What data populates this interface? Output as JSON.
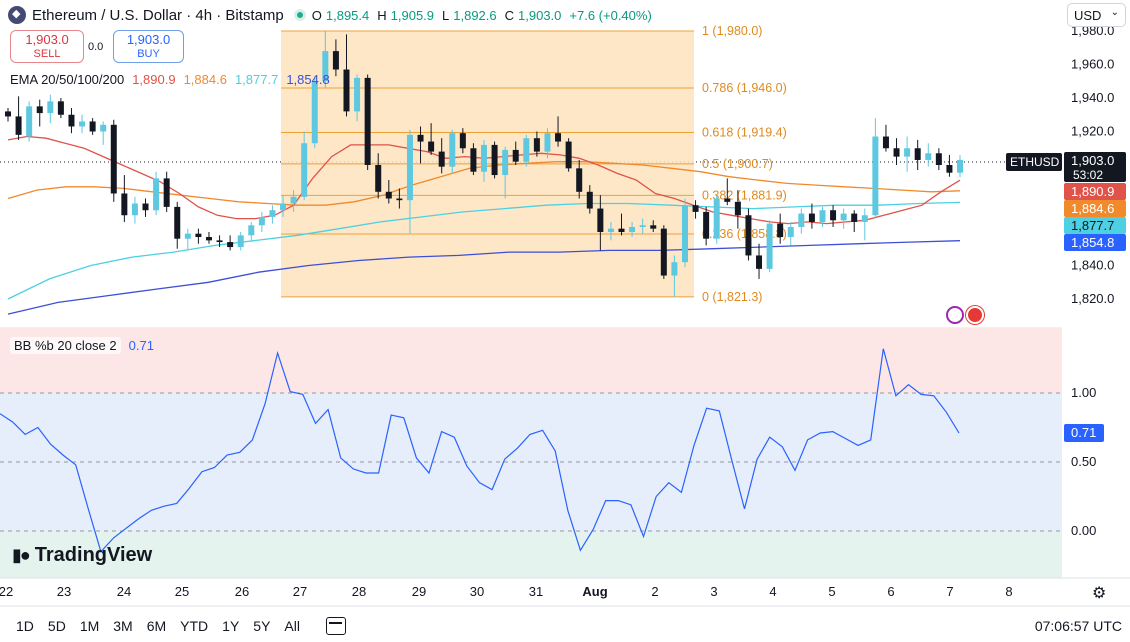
{
  "header": {
    "title": "Ethereum / U.S. Dollar · 4h · Bitstamp",
    "ohlc": [
      {
        "k": "O",
        "v": "1,895.4"
      },
      {
        "k": "H",
        "v": "1,905.9"
      },
      {
        "k": "L",
        "v": "1,892.6"
      },
      {
        "k": "C",
        "v": "1,903.0"
      },
      {
        "k": "",
        "v": "+7.6 (+0.40%)"
      }
    ]
  },
  "trade": {
    "sell_price": "1,903.0",
    "sell_label": "SELL",
    "spread": "0.0",
    "buy_price": "1,903.0",
    "buy_label": "BUY"
  },
  "currency_select": "USD",
  "ema_legend": {
    "label": "EMA 20/50/100/200",
    "values": [
      "1,890.9",
      "1,884.6",
      "1,877.7",
      "1,854.8"
    ],
    "colors": [
      "#e0534a",
      "#f08a2c",
      "#4dd0e1",
      "#3d4fd6"
    ]
  },
  "bb_legend": {
    "label": "BB %b 20 close 2",
    "value": "0.71"
  },
  "price_scale": {
    "ticks": [
      "1,980.0",
      "1,960.0",
      "1,940.0",
      "1,920.0",
      "1,900.0",
      "1,880.0",
      "1,860.0",
      "1,840.0",
      "1,820.0"
    ],
    "symbol_tag": "ETHUSD",
    "current_price": "1,903.0",
    "countdown": "53:02",
    "ema_tags": [
      "1,890.9",
      "1,884.6",
      "1,877.7",
      "1,854.8"
    ]
  },
  "bb_scale": {
    "ticks": [
      "1.00",
      "0.50",
      "0.00"
    ],
    "current": "0.71"
  },
  "time_axis": [
    "22",
    "23",
    "24",
    "25",
    "26",
    "27",
    "28",
    "29",
    "30",
    "31",
    "Aug",
    "2",
    "3",
    "4",
    "5",
    "6",
    "7",
    "8"
  ],
  "fib_levels": [
    {
      "label": "1 (1,980.0)",
      "price": 1980.0
    },
    {
      "label": "0.786 (1,946.0)",
      "price": 1946.0
    },
    {
      "label": "0.618 (1,919.4)",
      "price": 1919.4
    },
    {
      "label": "0.5 (1,900.7)",
      "price": 1900.7
    },
    {
      "label": "0.382 (1,881.9)",
      "price": 1881.9
    },
    {
      "label": "0.236 (1,858.8)",
      "price": 1858.8
    },
    {
      "label": "0 (1,821.3)",
      "price": 1821.3
    }
  ],
  "brand": "TradingView",
  "bottom_bar": {
    "ranges": [
      "1D",
      "5D",
      "1M",
      "3M",
      "6M",
      "YTD",
      "1Y",
      "5Y",
      "All"
    ],
    "clock": "07:06:57 UTC"
  },
  "colors": {
    "up": "#5ec8e0",
    "down": "#131722",
    "fib_fill": "#fde3bd",
    "fib_line": "#f0a035",
    "bb_line": "#2962ff",
    "bb_upper_fill": "#fde6e6",
    "bb_mid_fill": "#e6edfb",
    "bb_lower_fill": "#e4f3ee"
  },
  "chart_data": {
    "type": "candlestick",
    "symbol": "ETHUSD",
    "timeframe": "4h",
    "candles": [
      [
        1932.0,
        1934.0,
        1926.0,
        1929.0
      ],
      [
        1929.0,
        1941.0,
        1915.0,
        1918.0
      ],
      [
        1917.0,
        1938.0,
        1914.0,
        1935.0
      ],
      [
        1935.0,
        1939.0,
        1923.0,
        1931.0
      ],
      [
        1931.0,
        1942.0,
        1925.0,
        1938.0
      ],
      [
        1938.0,
        1940.0,
        1928.0,
        1930.0
      ],
      [
        1930.0,
        1934.0,
        1919.0,
        1923.0
      ],
      [
        1923.0,
        1930.0,
        1919.0,
        1926.0
      ],
      [
        1926.0,
        1928.0,
        1918.0,
        1920.0
      ],
      [
        1920.0,
        1926.0,
        1912.0,
        1924.0
      ],
      [
        1924.0,
        1927.0,
        1878.0,
        1883.0
      ],
      [
        1883.0,
        1894.0,
        1866.0,
        1870.0
      ],
      [
        1870.0,
        1881.0,
        1865.0,
        1877.0
      ],
      [
        1877.0,
        1880.0,
        1869.0,
        1873.0
      ],
      [
        1873.0,
        1896.0,
        1870.0,
        1892.0
      ],
      [
        1892.0,
        1896.0,
        1872.0,
        1875.0
      ],
      [
        1875.0,
        1878.0,
        1850.0,
        1856.0
      ],
      [
        1856.0,
        1862.0,
        1849.0,
        1859.0
      ],
      [
        1859.0,
        1862.0,
        1853.0,
        1857.0
      ],
      [
        1857.0,
        1860.0,
        1853.0,
        1855.0
      ],
      [
        1855.0,
        1858.0,
        1851.0,
        1854.0
      ],
      [
        1854.0,
        1858.0,
        1849.0,
        1851.0
      ],
      [
        1851.0,
        1860.0,
        1849.0,
        1858.0
      ],
      [
        1858.0,
        1866.0,
        1855.0,
        1864.0
      ],
      [
        1864.0,
        1872.0,
        1860.0,
        1869.0
      ],
      [
        1869.0,
        1876.0,
        1865.0,
        1873.0
      ],
      [
        1873.0,
        1882.0,
        1869.0,
        1877.0
      ],
      [
        1877.0,
        1885.0,
        1872.0,
        1881.0
      ],
      [
        1881.0,
        1920.0,
        1879.0,
        1913.0
      ],
      [
        1913.0,
        1953.0,
        1910.0,
        1950.0
      ],
      [
        1950.0,
        1980.0,
        1946.0,
        1968.0
      ],
      [
        1968.0,
        1975.0,
        1953.0,
        1957.0
      ],
      [
        1957.0,
        1978.0,
        1929.0,
        1932.0
      ],
      [
        1932.0,
        1954.0,
        1926.0,
        1952.0
      ],
      [
        1952.0,
        1954.0,
        1897.0,
        1900.0
      ],
      [
        1900.0,
        1907.0,
        1880.0,
        1884.0
      ],
      [
        1884.0,
        1891.0,
        1877.0,
        1880.0
      ],
      [
        1880.0,
        1886.0,
        1874.0,
        1879.0
      ],
      [
        1879.0,
        1921.0,
        1859.0,
        1918.0
      ],
      [
        1918.0,
        1923.0,
        1901.0,
        1914.0
      ],
      [
        1914.0,
        1925.0,
        1906.0,
        1908.0
      ],
      [
        1908.0,
        1916.0,
        1895.0,
        1899.0
      ],
      [
        1899.0,
        1921.0,
        1895.0,
        1919.0
      ],
      [
        1919.0,
        1922.0,
        1907.0,
        1910.0
      ],
      [
        1910.0,
        1913.0,
        1894.0,
        1896.0
      ],
      [
        1896.0,
        1915.0,
        1890.0,
        1912.0
      ],
      [
        1912.0,
        1914.0,
        1892.0,
        1894.0
      ],
      [
        1894.0,
        1911.0,
        1880.0,
        1909.0
      ],
      [
        1909.0,
        1914.0,
        1900.0,
        1902.0
      ],
      [
        1902.0,
        1918.0,
        1899.0,
        1916.0
      ],
      [
        1916.0,
        1920.0,
        1905.0,
        1908.0
      ],
      [
        1908.0,
        1922.0,
        1904.0,
        1919.0
      ],
      [
        1919.0,
        1929.0,
        1911.0,
        1914.0
      ],
      [
        1914.0,
        1916.0,
        1896.0,
        1898.0
      ],
      [
        1898.0,
        1903.0,
        1880.0,
        1884.0
      ],
      [
        1884.0,
        1888.0,
        1871.0,
        1874.0
      ],
      [
        1874.0,
        1882.0,
        1849.0,
        1860.0
      ],
      [
        1860.0,
        1866.0,
        1855.0,
        1862.0
      ],
      [
        1862.0,
        1871.0,
        1858.0,
        1860.0
      ],
      [
        1860.0,
        1866.0,
        1857.0,
        1863.0
      ],
      [
        1863.0,
        1868.0,
        1859.0,
        1864.0
      ],
      [
        1864.0,
        1867.0,
        1860.0,
        1862.0
      ],
      [
        1862.0,
        1864.0,
        1832.0,
        1834.0
      ],
      [
        1834.0,
        1846.0,
        1821.3,
        1842.0
      ],
      [
        1842.0,
        1880.0,
        1839.0,
        1876.0
      ],
      [
        1876.0,
        1879.0,
        1868.0,
        1872.0
      ],
      [
        1872.0,
        1875.0,
        1852.0,
        1856.0
      ],
      [
        1856.0,
        1882.0,
        1853.0,
        1880.0
      ],
      [
        1880.0,
        1892.0,
        1876.0,
        1878.0
      ],
      [
        1878.0,
        1885.0,
        1862.0,
        1870.0
      ],
      [
        1870.0,
        1874.0,
        1843.0,
        1846.0
      ],
      [
        1846.0,
        1853.0,
        1832.0,
        1838.0
      ],
      [
        1838.0,
        1867.0,
        1836.0,
        1865.0
      ],
      [
        1865.0,
        1871.0,
        1853.0,
        1857.0
      ],
      [
        1857.0,
        1866.0,
        1852.0,
        1863.0
      ],
      [
        1863.0,
        1874.0,
        1859.0,
        1871.0
      ],
      [
        1871.0,
        1877.0,
        1862.0,
        1866.0
      ],
      [
        1866.0,
        1875.0,
        1863.0,
        1873.0
      ],
      [
        1873.0,
        1876.0,
        1863.0,
        1867.0
      ],
      [
        1867.0,
        1874.0,
        1862.0,
        1871.0
      ],
      [
        1871.0,
        1873.0,
        1860.0,
        1866.0
      ],
      [
        1866.0,
        1874.0,
        1855.0,
        1870.0
      ],
      [
        1870.0,
        1928.0,
        1868.0,
        1917.0
      ],
      [
        1917.0,
        1924.0,
        1908.0,
        1910.0
      ],
      [
        1910.0,
        1916.0,
        1900.0,
        1905.0
      ],
      [
        1905.0,
        1917.0,
        1896.0,
        1910.0
      ],
      [
        1910.0,
        1915.0,
        1897.0,
        1903.0
      ],
      [
        1903.0,
        1913.0,
        1899.0,
        1907.0
      ],
      [
        1907.0,
        1910.0,
        1897.0,
        1900.0
      ],
      [
        1900.0,
        1906.0,
        1893.0,
        1895.4
      ],
      [
        1895.4,
        1905.9,
        1892.6,
        1903.0
      ]
    ],
    "ema": {
      "ema20": [
        1915,
        1917,
        1916,
        1913,
        1910,
        1905,
        1900,
        1895,
        1890,
        1883,
        1875,
        1870,
        1868,
        1868,
        1870,
        1876,
        1892,
        1905,
        1912,
        1912,
        1912,
        1910,
        1908,
        1904,
        1905,
        1904,
        1905,
        1906,
        1907,
        1906,
        1904,
        1900,
        1895,
        1891,
        1883,
        1880,
        1876,
        1872,
        1870,
        1868,
        1866,
        1865,
        1866,
        1865,
        1866,
        1867,
        1870,
        1873,
        1876,
        1884,
        1890.9
      ],
      "ema50": [
        1880,
        1885,
        1887,
        1887,
        1886,
        1884,
        1882,
        1880,
        1878,
        1877,
        1876,
        1876,
        1878,
        1882,
        1888,
        1893,
        1898,
        1900,
        1901,
        1902,
        1902,
        1901,
        1900,
        1898,
        1896,
        1893,
        1891,
        1889,
        1888,
        1887,
        1886,
        1885,
        1884,
        1884.6
      ],
      "ema100": [
        1820,
        1832,
        1840,
        1845,
        1848,
        1852,
        1855,
        1858,
        1862,
        1866,
        1869,
        1872,
        1874,
        1876,
        1877,
        1877,
        1876,
        1875,
        1874,
        1875,
        1876,
        1876,
        1877,
        1877.7
      ],
      "ema200": [
        1811,
        1818,
        1822,
        1826,
        1830,
        1836,
        1840,
        1843,
        1845,
        1846,
        1848,
        1848,
        1849,
        1849,
        1850,
        1851,
        1852,
        1853,
        1854,
        1854.8
      ]
    },
    "bb_percent_b": [
      0.85,
      0.79,
      0.7,
      0.75,
      0.63,
      0.55,
      0.48,
      0.16,
      -0.15,
      -0.05,
      0.02,
      0.09,
      0.15,
      0.18,
      0.2,
      0.31,
      0.43,
      0.46,
      0.55,
      0.57,
      0.66,
      0.92,
      1.29,
      1.01,
      0.99,
      0.78,
      0.88,
      0.53,
      0.45,
      0.42,
      0.42,
      0.84,
      0.82,
      0.53,
      0.42,
      0.72,
      0.68,
      0.47,
      0.35,
      0.3,
      0.52,
      0.6,
      0.7,
      0.73,
      0.58,
      0.15,
      -0.14,
      0.01,
      0.22,
      0.22,
      0.19,
      -0.04,
      0.25,
      0.35,
      0.28,
      0.62,
      0.89,
      0.87,
      0.51,
      0.16,
      0.52,
      0.68,
      0.61,
      0.44,
      0.66,
      0.71,
      0.72,
      0.67,
      0.62,
      0.66,
      1.32,
      0.98,
      1.06,
      0.99,
      0.98,
      0.86,
      0.71
    ],
    "fib_range": {
      "high": 1980.0,
      "low": 1821.3
    },
    "y_axis": {
      "min": 1805,
      "max": 1985,
      "ticks": [
        1820,
        1840,
        1860,
        1880,
        1900,
        1920,
        1940,
        1960,
        1980
      ]
    },
    "bb_axis": {
      "min": -0.45,
      "max": 1.45,
      "ticks": [
        0,
        0.5,
        1.0
      ]
    }
  }
}
